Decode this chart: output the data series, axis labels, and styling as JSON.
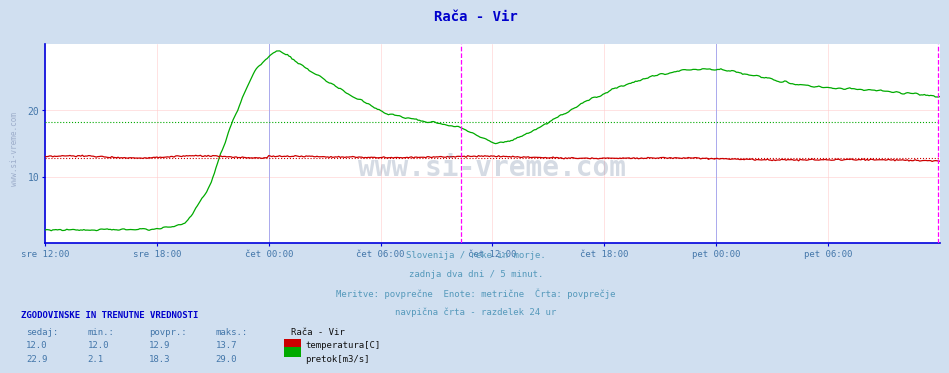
{
  "title": "Rača - Vir",
  "title_color": "#0000cc",
  "bg_color": "#d0dff0",
  "plot_bg_color": "#ffffff",
  "grid_color": "#ffcccc",
  "border_color": "#0000dd",
  "xlabel_color": "#4477aa",
  "ylim": [
    0,
    30
  ],
  "xlim": [
    0,
    576
  ],
  "tick_labels": [
    "sre 12:00",
    "sre 18:00",
    "čet 00:00",
    "čet 06:00",
    "čet 12:00",
    "čet 18:00",
    "pet 00:00",
    "pet 06:00"
  ],
  "tick_positions": [
    0,
    72,
    144,
    216,
    288,
    360,
    432,
    504
  ],
  "ytick_labels": [
    "10",
    "20"
  ],
  "ytick_positions": [
    10,
    20
  ],
  "temp_avg": 12.9,
  "flow_avg": 18.3,
  "temp_color": "#cc0000",
  "flow_color": "#00aa00",
  "vline_color": "#ff00ff",
  "vline_pos": 268,
  "subtitle_lines": [
    "Slovenija / reke in morje.",
    "zadnja dva dni / 5 minut.",
    "Meritve: povprečne  Enote: metrične  Črta: povprečje",
    "navpična črta - razdelek 24 ur"
  ],
  "subtitle_color": "#5599bb",
  "table_header_color": "#0000cc",
  "table_label_color": "#4477aa",
  "table_data": {
    "sedaj_temp": 12.0,
    "min_temp": 12.0,
    "povpr_temp": 12.9,
    "maks_temp": 13.7,
    "sedaj_flow": 22.9,
    "min_flow": 2.1,
    "povpr_flow": 18.3,
    "maks_flow": 29.0
  },
  "watermark_text": "www.si-vreme.com",
  "left_text": "www.si-vreme.com",
  "note_text": ""
}
